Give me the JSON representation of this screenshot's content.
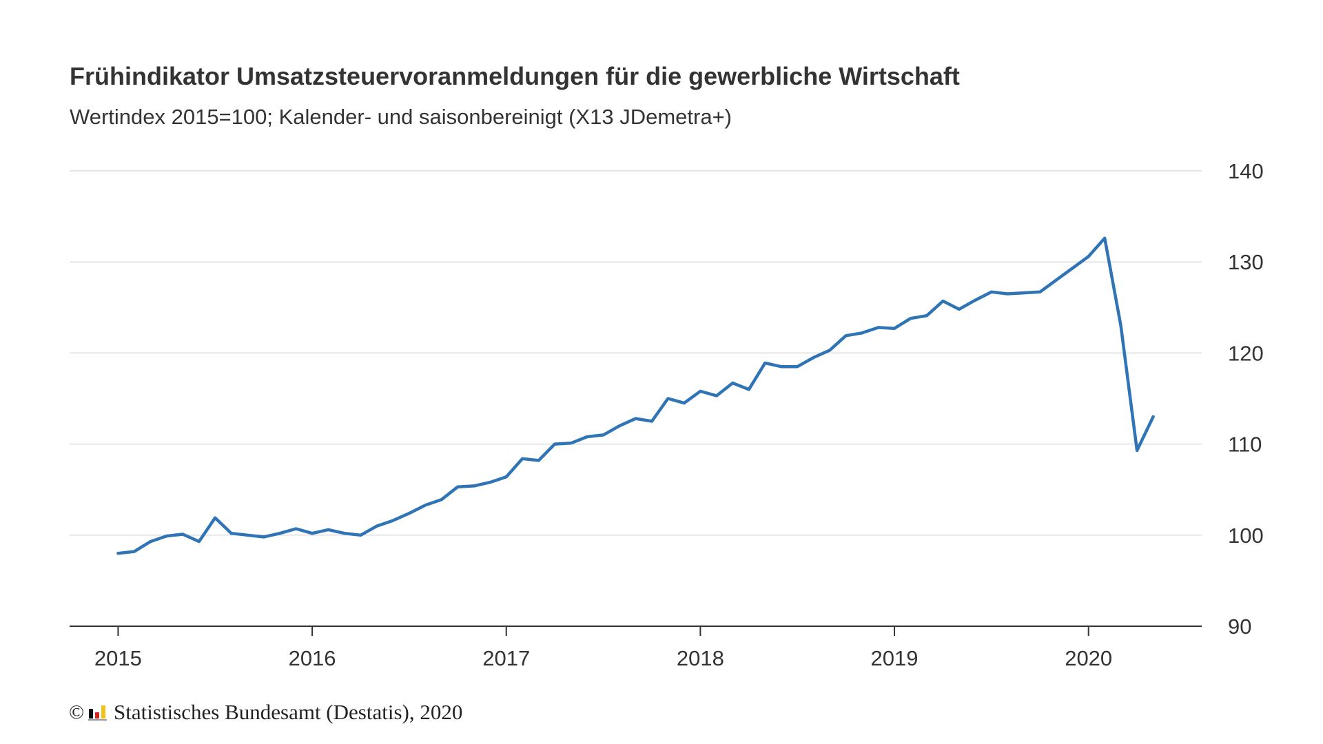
{
  "chart_data": {
    "type": "line",
    "title": "Frühindikator Umsatzsteuervoranmeldungen für die gewerbliche Wirtschaft",
    "subtitle": "Wertindex 2015=100; Kalender- und saisonbereinigt (X13 JDemetra+)",
    "x_ticks": [
      "2015",
      "2016",
      "2017",
      "2018",
      "2019",
      "2020"
    ],
    "y_ticks": [
      "90",
      "100",
      "110",
      "120",
      "130",
      "140"
    ],
    "ylim": [
      90,
      140
    ],
    "xlim": [
      "2014-10",
      "2020-08"
    ],
    "grid": "horizontal",
    "legend": "none",
    "x": [
      "2015-01",
      "2015-02",
      "2015-03",
      "2015-04",
      "2015-05",
      "2015-06",
      "2015-07",
      "2015-08",
      "2015-09",
      "2015-10",
      "2015-11",
      "2015-12",
      "2016-01",
      "2016-02",
      "2016-03",
      "2016-04",
      "2016-05",
      "2016-06",
      "2016-07",
      "2016-08",
      "2016-09",
      "2016-10",
      "2016-11",
      "2016-12",
      "2017-01",
      "2017-02",
      "2017-03",
      "2017-04",
      "2017-05",
      "2017-06",
      "2017-07",
      "2017-08",
      "2017-09",
      "2017-10",
      "2017-11",
      "2017-12",
      "2018-01",
      "2018-02",
      "2018-03",
      "2018-04",
      "2018-05",
      "2018-06",
      "2018-07",
      "2018-08",
      "2018-09",
      "2018-10",
      "2018-11",
      "2018-12",
      "2019-01",
      "2019-02",
      "2019-03",
      "2019-04",
      "2019-05",
      "2019-06",
      "2019-07",
      "2019-08",
      "2019-09",
      "2019-10",
      "2019-11",
      "2019-12",
      "2020-01",
      "2020-02",
      "2020-03",
      "2020-04",
      "2020-05"
    ],
    "series": [
      {
        "values": [
          98.0,
          98.2,
          99.3,
          99.9,
          100.1,
          99.3,
          101.9,
          100.2,
          100.0,
          99.8,
          100.2,
          100.7,
          100.2,
          100.6,
          100.2,
          100.0,
          101.0,
          101.6,
          102.4,
          103.3,
          103.9,
          105.3,
          105.4,
          105.8,
          106.4,
          108.4,
          108.2,
          110.0,
          110.1,
          110.8,
          111.0,
          112.0,
          112.8,
          112.5,
          115.0,
          114.5,
          115.8,
          115.3,
          116.7,
          116.0,
          118.9,
          118.5,
          118.5,
          119.5,
          120.3,
          121.9,
          122.2,
          122.8,
          122.7,
          123.8,
          124.1,
          125.7,
          124.8,
          125.8,
          126.7,
          126.5,
          126.6,
          126.7,
          128.0,
          129.3,
          130.6,
          132.6,
          123.0,
          109.3,
          113.0
        ],
        "color": "#2f74b5"
      }
    ]
  },
  "footer": {
    "copyright_symbol": "©",
    "source_text": "Statistisches Bundesamt (Destatis), 2020",
    "logo_colors": [
      "#111111",
      "#d9241b",
      "#f2c21a"
    ]
  }
}
